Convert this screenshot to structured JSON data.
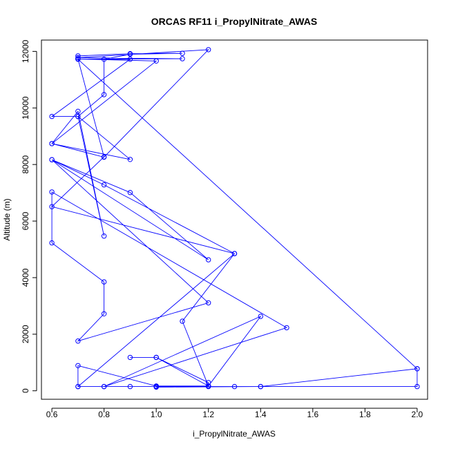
{
  "chart_data": {
    "type": "line",
    "title": "ORCAS RF11 i_PropylNitrate_AWAS",
    "xlabel": "i_PropylNitrate_AWAS",
    "ylabel": "Altitude (m)",
    "xlim": [
      0.56,
      2.04
    ],
    "ylim": [
      -300,
      12400
    ],
    "xticks": [
      0.6,
      0.8,
      1.0,
      1.2,
      1.4,
      1.6,
      1.8,
      2.0
    ],
    "xtick_labels": [
      "0.6",
      "0.8",
      "1.0",
      "1.2",
      "1.4",
      "1.6",
      "1.8",
      "2.0"
    ],
    "yticks": [
      0,
      2000,
      4000,
      6000,
      8000,
      10000,
      12000
    ],
    "ytick_labels": [
      "0",
      "2000",
      "4000",
      "6000",
      "8000",
      "10000",
      "12000"
    ],
    "color": "#0000ff",
    "marker": "open-circle",
    "points": [
      [
        0.7,
        150
      ],
      [
        0.8,
        150
      ],
      [
        0.9,
        150
      ],
      [
        1.0,
        150
      ],
      [
        1.2,
        150
      ],
      [
        1.3,
        150
      ],
      [
        1.4,
        150
      ],
      [
        2.0,
        150
      ],
      [
        2.0,
        780
      ],
      [
        1.4,
        150
      ],
      [
        1.0,
        130
      ],
      [
        1.2,
        170
      ],
      [
        1.2,
        290
      ],
      [
        1.0,
        1180
      ],
      [
        0.9,
        1180
      ],
      [
        1.0,
        1180
      ],
      [
        1.2,
        170
      ],
      [
        1.1,
        2460
      ],
      [
        1.3,
        4850
      ],
      [
        0.7,
        150
      ],
      [
        0.7,
        890
      ],
      [
        1.0,
        170
      ],
      [
        1.2,
        170
      ],
      [
        1.4,
        2630
      ],
      [
        0.8,
        150
      ],
      [
        1.5,
        2230
      ],
      [
        0.6,
        7030
      ],
      [
        0.6,
        5230
      ],
      [
        0.8,
        3850
      ],
      [
        0.8,
        2720
      ],
      [
        0.7,
        1760
      ],
      [
        1.2,
        3110
      ],
      [
        0.6,
        8170
      ],
      [
        1.2,
        4630
      ],
      [
        0.9,
        7010
      ],
      [
        0.6,
        8170
      ],
      [
        0.8,
        7280
      ],
      [
        1.3,
        4850
      ],
      [
        0.6,
        6510
      ],
      [
        0.8,
        8270
      ],
      [
        0.7,
        11730
      ],
      [
        1.1,
        11740
      ],
      [
        0.7,
        11780
      ],
      [
        1.2,
        12060
      ],
      [
        0.8,
        8260
      ],
      [
        0.6,
        8740
      ],
      [
        1.0,
        11660
      ],
      [
        0.7,
        11730
      ],
      [
        0.9,
        11720
      ],
      [
        0.6,
        9700
      ],
      [
        0.7,
        9700
      ],
      [
        0.9,
        8180
      ],
      [
        0.6,
        8740
      ],
      [
        0.7,
        9880
      ],
      [
        0.8,
        5470
      ],
      [
        0.7,
        9700
      ],
      [
        0.8,
        10470
      ],
      [
        0.8,
        11720
      ],
      [
        0.9,
        11900
      ],
      [
        1.1,
        11930
      ],
      [
        0.9,
        11920
      ],
      [
        0.7,
        11840
      ],
      [
        0.7,
        11720
      ],
      [
        2.0,
        780
      ]
    ]
  }
}
